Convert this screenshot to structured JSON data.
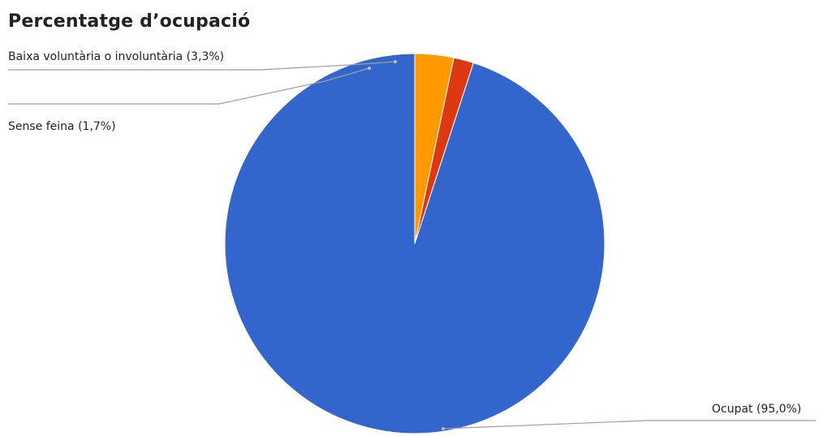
{
  "chart_data": {
    "type": "pie",
    "title": "Percentatge d’ocupació",
    "slices": [
      {
        "label": "Ocupat (95,0%)",
        "value": 95.0,
        "color": "#3366cc"
      },
      {
        "label": "Sense feina (1,7%)",
        "value": 1.7,
        "color": "#dc3912"
      },
      {
        "label": "Baixa voluntària o involuntària (3,3%)",
        "value": 3.3,
        "color": "#ff9900"
      }
    ],
    "start_angle": "top",
    "direction": "counterclockwise",
    "legend": "none",
    "label_style": "callout lines"
  }
}
